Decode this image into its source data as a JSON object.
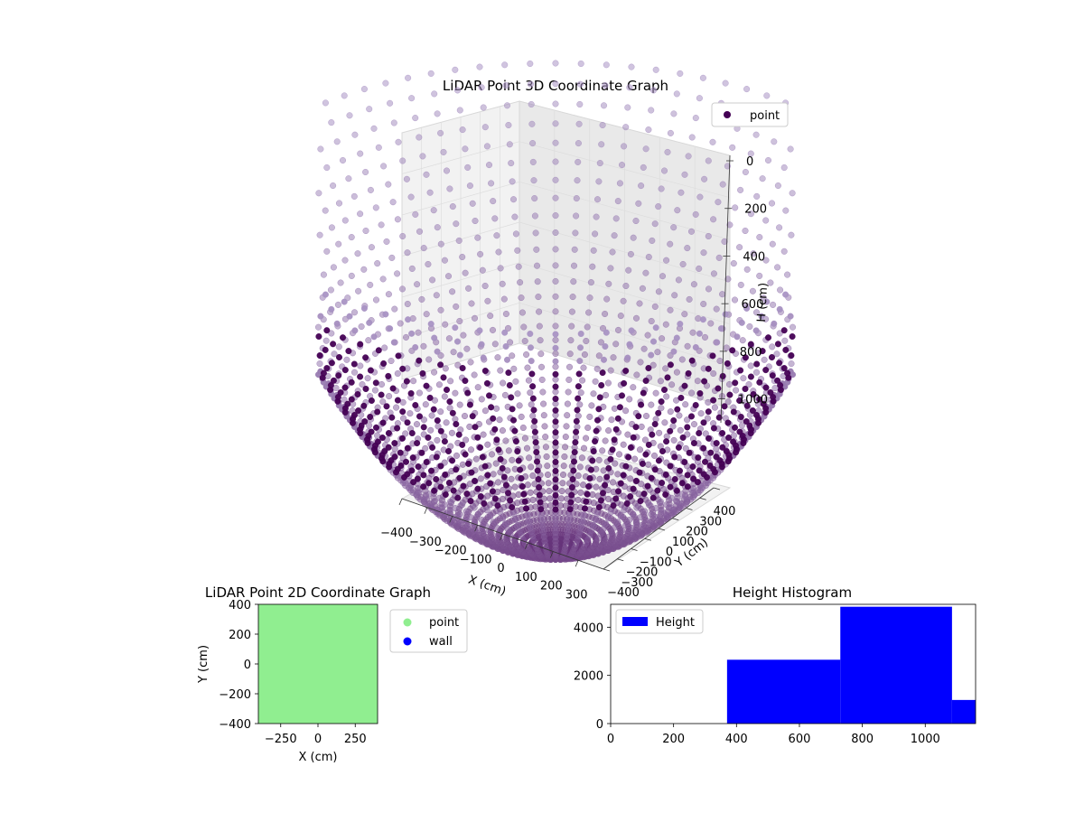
{
  "chart_data": [
    {
      "type": "scatter",
      "projection": "3d",
      "title": "LiDAR Point 3D Coordinate Graph",
      "xlabel": "X (cm)",
      "ylabel": "Y (cm)",
      "zlabel": "H (cm)",
      "xlim": [
        -400,
        400
      ],
      "ylim": [
        -400,
        400
      ],
      "zlim": [
        1100,
        0
      ],
      "x_ticks": [
        "−400",
        "−300",
        "−200",
        "−100",
        "0",
        "100",
        "200",
        "300"
      ],
      "y_ticks": [
        "−400",
        "−300",
        "−200",
        "−100",
        "0",
        "100",
        "200",
        "300",
        "400"
      ],
      "z_ticks": [
        "0",
        "200",
        "400",
        "600",
        "800",
        "1000"
      ],
      "z_inverted": true,
      "grid": true,
      "legend": {
        "placement": "upper-right",
        "entries": [
          "point"
        ]
      },
      "series": [
        {
          "name": "point",
          "shape": "bowl",
          "radius_min": 0,
          "radius_max": 400,
          "height_at_center": 1000,
          "height_at_edge": 0,
          "radial_lines": 80,
          "points_per_line": 40,
          "color_low": "#440154",
          "color_high": "#a994c4"
        }
      ]
    },
    {
      "type": "scatter",
      "title": "LiDAR Point 2D Coordinate Graph",
      "xlabel": "X (cm)",
      "ylabel": "Y (cm)",
      "xlim": [
        -400,
        400
      ],
      "ylim": [
        -400,
        400
      ],
      "x_ticks": [
        -250,
        0,
        250
      ],
      "y_ticks": [
        400,
        200,
        0,
        -200,
        -400
      ],
      "y_tick_labels": [
        "400",
        "200",
        "0",
        "−200",
        "−400"
      ],
      "x_tick_labels": [
        "−250",
        "0",
        "250"
      ],
      "legend": {
        "placement": "outside-right",
        "entries": [
          {
            "label": "point",
            "color": "#90ee90"
          },
          {
            "label": "wall",
            "color": "#0000ff"
          }
        ]
      },
      "series": [
        {
          "name": "point",
          "color": "#90ee90",
          "extent": [
            [
              -400,
              400
            ],
            [
              -400,
              400
            ]
          ]
        }
      ]
    },
    {
      "type": "histogram",
      "title": "Height Histogram",
      "xlabel": "",
      "ylabel": "",
      "xlim": [
        0,
        1160
      ],
      "ylim": [
        0,
        4950
      ],
      "x_ticks": [
        0,
        200,
        400,
        600,
        800,
        1000
      ],
      "y_ticks": [
        0,
        2000,
        4000
      ],
      "legend": {
        "placement": "upper-left",
        "entries": [
          "Height"
        ]
      },
      "color": "#0000ff",
      "series": [
        {
          "name": "Height",
          "bins": [
            {
              "from": 0,
              "to": 370,
              "count": 0
            },
            {
              "from": 370,
              "to": 730,
              "count": 2650
            },
            {
              "from": 730,
              "to": 1085,
              "count": 4850
            },
            {
              "from": 1085,
              "to": 1160,
              "count": 980
            }
          ]
        }
      ]
    }
  ]
}
